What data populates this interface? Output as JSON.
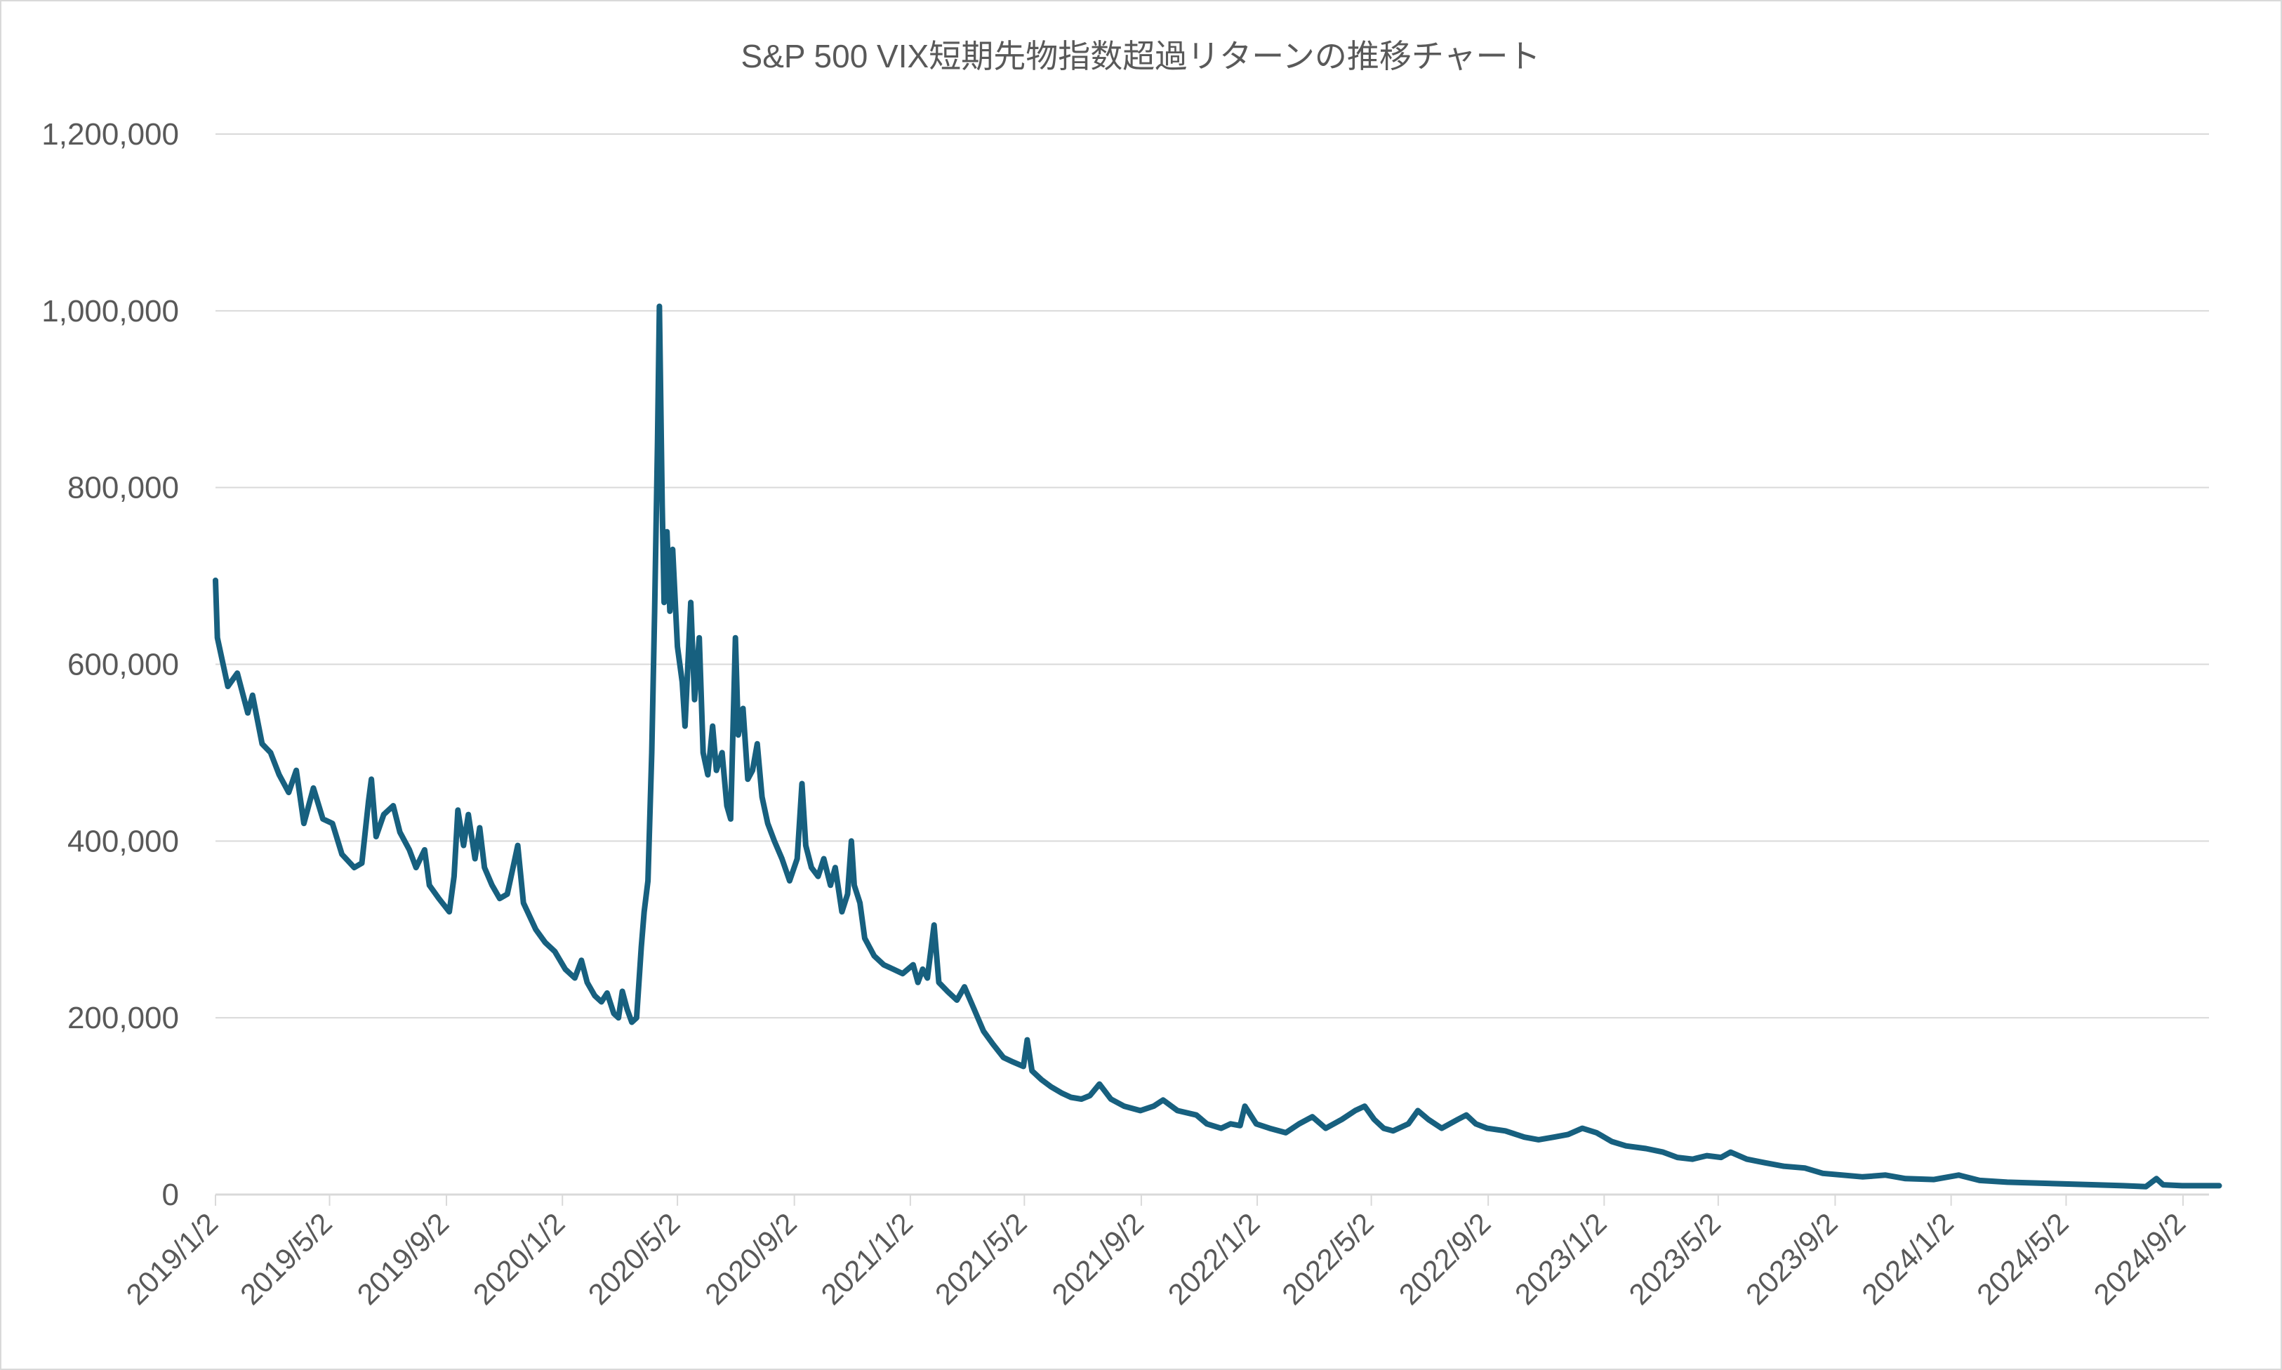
{
  "chart_data": {
    "type": "line",
    "title": "S&P 500 VIX短期先物指数超過リターンの推移チャート",
    "xlabel": "",
    "ylabel": "",
    "ylim": [
      0,
      1200000
    ],
    "yticks": [
      "0",
      "200,000",
      "400,000",
      "600,000",
      "800,000",
      "1,000,000",
      "1,200,000"
    ],
    "ytick_values": [
      0,
      200000,
      400000,
      600000,
      800000,
      1000000,
      1200000
    ],
    "xticks": [
      "2019/1/2",
      "2019/5/2",
      "2019/9/2",
      "2020/1/2",
      "2020/5/2",
      "2020/9/2",
      "2021/1/2",
      "2021/5/2",
      "2021/9/2",
      "2022/1/2",
      "2022/5/2",
      "2022/9/2",
      "2023/1/2",
      "2023/5/2",
      "2023/9/2",
      "2024/1/2",
      "2024/5/2",
      "2024/9/2"
    ],
    "grid": true,
    "legend": "none",
    "line_color": "#17607f",
    "series": [
      {
        "x": [
          "2019-01-02",
          "2019-01-04",
          "2019-01-15",
          "2019-01-25",
          "2019-02-05",
          "2019-02-10",
          "2019-02-20",
          "2019-03-01",
          "2019-03-10",
          "2019-03-20",
          "2019-03-28",
          "2019-04-05",
          "2019-04-15",
          "2019-04-25",
          "2019-05-05",
          "2019-05-15",
          "2019-05-28",
          "2019-06-05",
          "2019-06-12",
          "2019-06-15",
          "2019-06-20",
          "2019-06-28",
          "2019-07-08",
          "2019-07-15",
          "2019-07-25",
          "2019-08-01",
          "2019-08-10",
          "2019-08-15",
          "2019-08-25",
          "2019-09-05",
          "2019-09-10",
          "2019-09-14",
          "2019-09-20",
          "2019-09-25",
          "2019-10-02",
          "2019-10-07",
          "2019-10-12",
          "2019-10-20",
          "2019-10-28",
          "2019-11-05",
          "2019-11-12",
          "2019-11-16",
          "2019-11-22",
          "2019-12-05",
          "2019-12-15",
          "2019-12-25",
          "2020-01-05",
          "2020-01-15",
          "2020-01-22",
          "2020-01-28",
          "2020-02-05",
          "2020-02-12",
          "2020-02-18",
          "2020-02-25",
          "2020-03-01",
          "2020-03-05",
          "2020-03-10",
          "2020-03-15",
          "2020-03-20",
          "2020-03-25",
          "2020-03-28",
          "2020-04-01",
          "2020-04-05",
          "2020-04-08",
          "2020-04-11",
          "2020-04-13",
          "2020-04-16",
          "2020-04-18",
          "2020-04-21",
          "2020-04-24",
          "2020-04-27",
          "2020-05-02",
          "2020-05-07",
          "2020-05-10",
          "2020-05-13",
          "2020-05-16",
          "2020-05-20",
          "2020-05-25",
          "2020-05-29",
          "2020-06-03",
          "2020-06-08",
          "2020-06-12",
          "2020-06-18",
          "2020-06-23",
          "2020-06-27",
          "2020-07-02",
          "2020-07-05",
          "2020-07-10",
          "2020-07-15",
          "2020-07-20",
          "2020-07-25",
          "2020-07-30",
          "2020-08-05",
          "2020-08-12",
          "2020-08-20",
          "2020-08-28",
          "2020-09-05",
          "2020-09-10",
          "2020-09-14",
          "2020-09-20",
          "2020-09-27",
          "2020-10-03",
          "2020-10-10",
          "2020-10-15",
          "2020-10-22",
          "2020-10-28",
          "2020-11-01",
          "2020-11-04",
          "2020-11-10",
          "2020-11-15",
          "2020-11-25",
          "2020-12-05",
          "2020-12-15",
          "2020-12-25",
          "2021-01-05",
          "2021-01-10",
          "2021-01-15",
          "2021-01-20",
          "2021-01-27",
          "2021-02-01",
          "2021-02-10",
          "2021-02-20",
          "2021-02-28",
          "2021-03-10",
          "2021-03-20",
          "2021-03-30",
          "2021-04-10",
          "2021-04-20",
          "2021-05-01",
          "2021-05-05",
          "2021-05-10",
          "2021-05-20",
          "2021-05-30",
          "2021-06-10",
          "2021-06-20",
          "2021-07-01",
          "2021-07-10",
          "2021-07-20",
          "2021-08-01",
          "2021-08-15",
          "2021-09-01",
          "2021-09-15",
          "2021-09-25",
          "2021-10-10",
          "2021-10-30",
          "2021-11-10",
          "2021-11-25",
          "2021-12-05",
          "2021-12-15",
          "2021-12-20",
          "2022-01-01",
          "2022-01-15",
          "2022-02-01",
          "2022-02-15",
          "2022-03-01",
          "2022-03-15",
          "2022-04-01",
          "2022-04-15",
          "2022-04-25",
          "2022-05-05",
          "2022-05-15",
          "2022-05-25",
          "2022-06-10",
          "2022-06-20",
          "2022-07-01",
          "2022-07-15",
          "2022-08-01",
          "2022-08-10",
          "2022-08-20",
          "2022-09-01",
          "2022-09-20",
          "2022-10-10",
          "2022-10-25",
          "2022-11-10",
          "2022-11-25",
          "2022-12-10",
          "2022-12-25",
          "2023-01-10",
          "2023-01-25",
          "2023-02-15",
          "2023-03-05",
          "2023-03-20",
          "2023-04-05",
          "2023-04-20",
          "2023-05-05",
          "2023-05-15",
          "2023-06-01",
          "2023-06-20",
          "2023-07-10",
          "2023-08-01",
          "2023-08-20",
          "2023-09-10",
          "2023-10-01",
          "2023-10-25",
          "2023-11-15",
          "2023-12-15",
          "2024-01-10",
          "2024-02-01",
          "2024-03-01",
          "2024-04-01",
          "2024-05-01",
          "2024-06-01",
          "2024-07-01",
          "2024-07-25",
          "2024-08-05",
          "2024-08-12",
          "2024-09-01",
          "2024-10-10"
        ],
        "y": [
          695000,
          630000,
          575000,
          590000,
          545000,
          565000,
          510000,
          500000,
          475000,
          455000,
          480000,
          420000,
          460000,
          425000,
          420000,
          385000,
          370000,
          375000,
          445000,
          470000,
          405000,
          430000,
          440000,
          410000,
          390000,
          370000,
          390000,
          350000,
          335000,
          320000,
          360000,
          435000,
          395000,
          430000,
          380000,
          415000,
          370000,
          350000,
          335000,
          340000,
          375000,
          395000,
          330000,
          300000,
          285000,
          275000,
          255000,
          245000,
          265000,
          240000,
          225000,
          218000,
          228000,
          205000,
          200000,
          230000,
          210000,
          195000,
          200000,
          280000,
          320000,
          355000,
          500000,
          660000,
          850000,
          1005000,
          780000,
          670000,
          750000,
          660000,
          730000,
          620000,
          580000,
          530000,
          600000,
          670000,
          560000,
          630000,
          500000,
          475000,
          530000,
          480000,
          500000,
          440000,
          425000,
          630000,
          520000,
          550000,
          470000,
          480000,
          510000,
          450000,
          420000,
          400000,
          380000,
          355000,
          380000,
          465000,
          395000,
          370000,
          360000,
          380000,
          350000,
          370000,
          320000,
          340000,
          400000,
          350000,
          330000,
          290000,
          270000,
          260000,
          255000,
          250000,
          260000,
          240000,
          255000,
          245000,
          305000,
          240000,
          230000,
          220000,
          235000,
          210000,
          185000,
          170000,
          155000,
          150000,
          145000,
          175000,
          140000,
          130000,
          122000,
          115000,
          110000,
          108000,
          112000,
          125000,
          108000,
          100000,
          95000,
          100000,
          107000,
          95000,
          90000,
          80000,
          75000,
          80000,
          78000,
          100000,
          80000,
          75000,
          70000,
          80000,
          88000,
          75000,
          85000,
          95000,
          100000,
          85000,
          75000,
          72000,
          80000,
          95000,
          85000,
          75000,
          85000,
          90000,
          80000,
          75000,
          72000,
          65000,
          62000,
          65000,
          68000,
          75000,
          70000,
          60000,
          55000,
          52000,
          48000,
          42000,
          40000,
          44000,
          42000,
          48000,
          40000,
          36000,
          32000,
          30000,
          24000,
          22000,
          20000,
          22000,
          18000,
          17000,
          22000,
          16000,
          14000,
          13000,
          12000,
          11000,
          10000,
          9000,
          18000,
          11000,
          10000,
          10000
        ]
      }
    ]
  }
}
